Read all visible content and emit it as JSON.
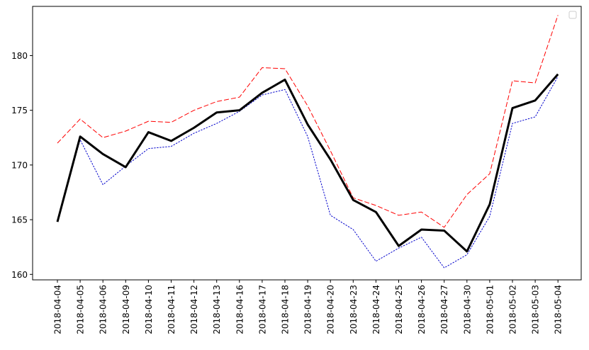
{
  "chart_data": {
    "type": "line",
    "title": "",
    "xlabel": "",
    "ylabel": "",
    "categories": [
      "2018-04-04",
      "2018-04-05",
      "2018-04-06",
      "2018-04-09",
      "2018-04-10",
      "2018-04-11",
      "2018-04-12",
      "2018-04-13",
      "2018-04-16",
      "2018-04-17",
      "2018-04-18",
      "2018-04-19",
      "2018-04-20",
      "2018-04-23",
      "2018-04-24",
      "2018-04-25",
      "2018-04-26",
      "2018-04-27",
      "2018-04-30",
      "2018-05-01",
      "2018-05-02",
      "2018-05-03",
      "2018-05-04"
    ],
    "ylim": [
      159.5,
      184.5
    ],
    "yticks": [
      160,
      165,
      170,
      175,
      180
    ],
    "grid": false,
    "legend": {
      "placement": "top-right",
      "entries": []
    },
    "series": [
      {
        "style": "dashed",
        "color": "#ff0000",
        "values": [
          172.0,
          174.2,
          172.5,
          173.1,
          174.0,
          173.9,
          175.0,
          175.8,
          176.2,
          178.9,
          178.8,
          175.4,
          171.3,
          167.0,
          166.3,
          165.4,
          165.7,
          164.3,
          167.3,
          169.2,
          177.7,
          177.5,
          183.7
        ]
      },
      {
        "style": "dotted",
        "color": "#0000cc",
        "values": [
          164.9,
          172.3,
          168.2,
          169.9,
          171.5,
          171.7,
          172.9,
          173.8,
          174.9,
          176.4,
          176.9,
          172.6,
          165.4,
          164.1,
          161.2,
          162.4,
          163.4,
          160.6,
          161.8,
          165.3,
          173.8,
          174.4,
          178.1
        ]
      },
      {
        "style": "solid",
        "color": "#000000",
        "values": [
          164.8,
          172.6,
          171.0,
          169.8,
          173.0,
          172.2,
          173.4,
          174.8,
          175.0,
          176.6,
          177.8,
          173.7,
          170.5,
          166.8,
          165.7,
          162.6,
          164.1,
          164.0,
          162.1,
          166.4,
          175.2,
          175.9,
          178.3
        ]
      }
    ]
  }
}
